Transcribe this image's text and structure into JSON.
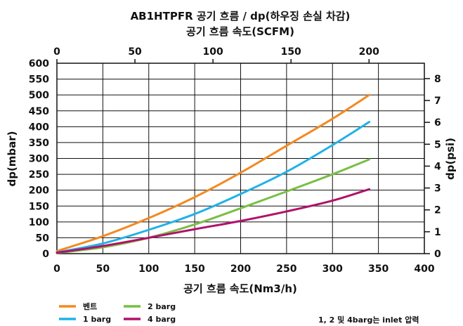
{
  "chart_data": {
    "type": "line",
    "title": "AB1HTPFR 공기 흐름 / dp(하우징 손실 차감)",
    "subtitle": "공기 흐름 속도(SCFM)",
    "xlabel": "공기 흐름 속도(Nm3/h)",
    "ylabel": "dp(mbar)",
    "y2label": "dp(psi)",
    "xlim": [
      0,
      400
    ],
    "ylim": [
      0,
      600
    ],
    "x_ticks": [
      0,
      50,
      100,
      150,
      200,
      250,
      300,
      350,
      400
    ],
    "y_ticks": [
      0,
      50,
      100,
      150,
      200,
      250,
      300,
      350,
      400,
      450,
      500,
      550,
      600
    ],
    "top_x_ticks": [
      0,
      50,
      100,
      150,
      200
    ],
    "top_x_scfm_per_nm3h": 0.5886,
    "y2_ticks": [
      0,
      1,
      2,
      3,
      4,
      5,
      6,
      7,
      8
    ],
    "y2_mbar_per_psi": 68.9476,
    "grid": true,
    "legend_position": "bottom-left",
    "series": [
      {
        "name": "벤트",
        "color": "#f28a22",
        "x": [
          0,
          50,
          100,
          150,
          200,
          250,
          300,
          340
        ],
        "y": [
          8,
          55,
          112,
          178,
          255,
          340,
          425,
          500
        ]
      },
      {
        "name": "1 barg",
        "color": "#1fb2e6",
        "x": [
          0,
          50,
          100,
          150,
          200,
          250,
          300,
          340
        ],
        "y": [
          4,
          32,
          75,
          125,
          188,
          258,
          342,
          415
        ]
      },
      {
        "name": "2 barg",
        "color": "#78bf43",
        "x": [
          0,
          50,
          100,
          150,
          200,
          250,
          300,
          340
        ],
        "y": [
          2,
          20,
          50,
          92,
          143,
          196,
          250,
          297
        ]
      },
      {
        "name": "4 barg",
        "color": "#b0116a",
        "x": [
          0,
          50,
          100,
          150,
          200,
          250,
          300,
          340
        ],
        "y": [
          3,
          24,
          50,
          77,
          103,
          133,
          167,
          203
        ]
      }
    ],
    "annotation": "1, 2 및 4barg는 inlet 압력"
  }
}
